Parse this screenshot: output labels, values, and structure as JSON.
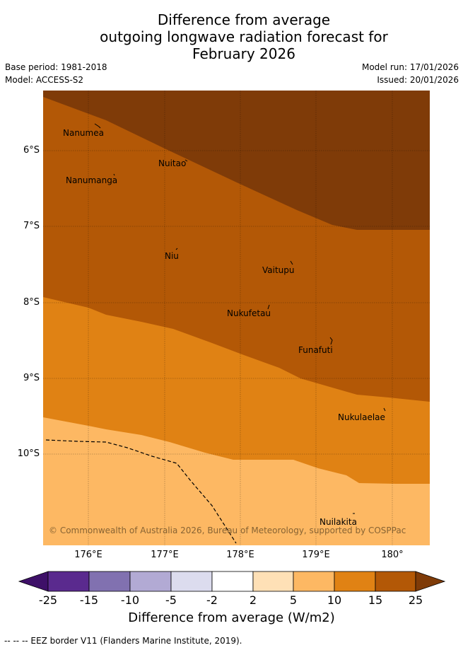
{
  "title_lines": [
    "Difference from average",
    "outgoing longwave radiation forecast for",
    "February 2026"
  ],
  "meta": {
    "base_period": "Base period: 1981-2018",
    "model": "Model: ACCESS-S2",
    "model_run": "Model run: 17/01/2026",
    "issued": "Issued: 20/01/2026"
  },
  "map": {
    "y_labels": [
      "6°S",
      "7°S",
      "8°S",
      "9°S",
      "10°S"
    ],
    "x_labels": [
      "176°E",
      "177°E",
      "178°E",
      "179°E",
      "180°"
    ],
    "places": [
      "Nanumea",
      "Nuitao",
      "Nanumanga",
      "Niu",
      "Vaitupu",
      "Nukufetau",
      "Funafuti",
      "Nukulaelae",
      "Nuilakita"
    ],
    "copyright": "© Commonwealth of Australia 2026, Bureau of Meteorology, supported by COSPPac"
  },
  "colorbar": {
    "ticks": [
      "-25",
      "-15",
      "-10",
      "-5",
      "-2",
      "2",
      "5",
      "10",
      "15",
      "25"
    ],
    "colors": [
      "#3e1068",
      "#5a2a8e",
      "#8171b0",
      "#b2aad4",
      "#dcdcee",
      "#ffffff",
      "#fee0b6",
      "#fdb863",
      "#e08214",
      "#b35806",
      "#7f3b08"
    ],
    "title": "Difference from average (W/m2)"
  },
  "footer": "--  --  -- EEZ border V11 (Flanders Marine Institute, 2019)."
}
